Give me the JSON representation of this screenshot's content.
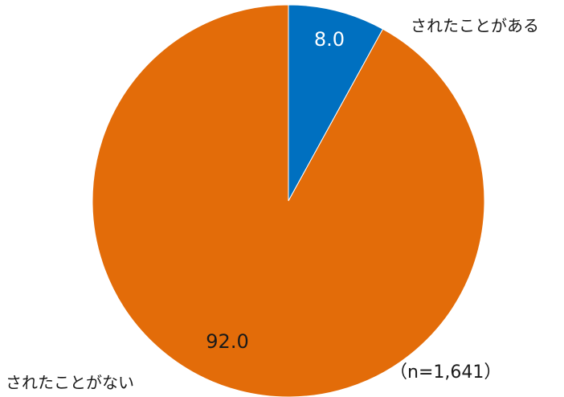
{
  "chart_data": {
    "type": "pie",
    "title": "",
    "sample_note": "（n=1,641）",
    "slices": [
      {
        "label": "されたことがある",
        "value": 8.0,
        "value_label": "8.0",
        "color": "#0070c0",
        "value_label_color": "#ffffff"
      },
      {
        "label": "されたことがない",
        "value": 92.0,
        "value_label": "92.0",
        "color": "#e36c09",
        "value_label_color": "#1a1a1a"
      }
    ],
    "start_angle": "12 o'clock",
    "direction": "clockwise",
    "legend": "none"
  }
}
